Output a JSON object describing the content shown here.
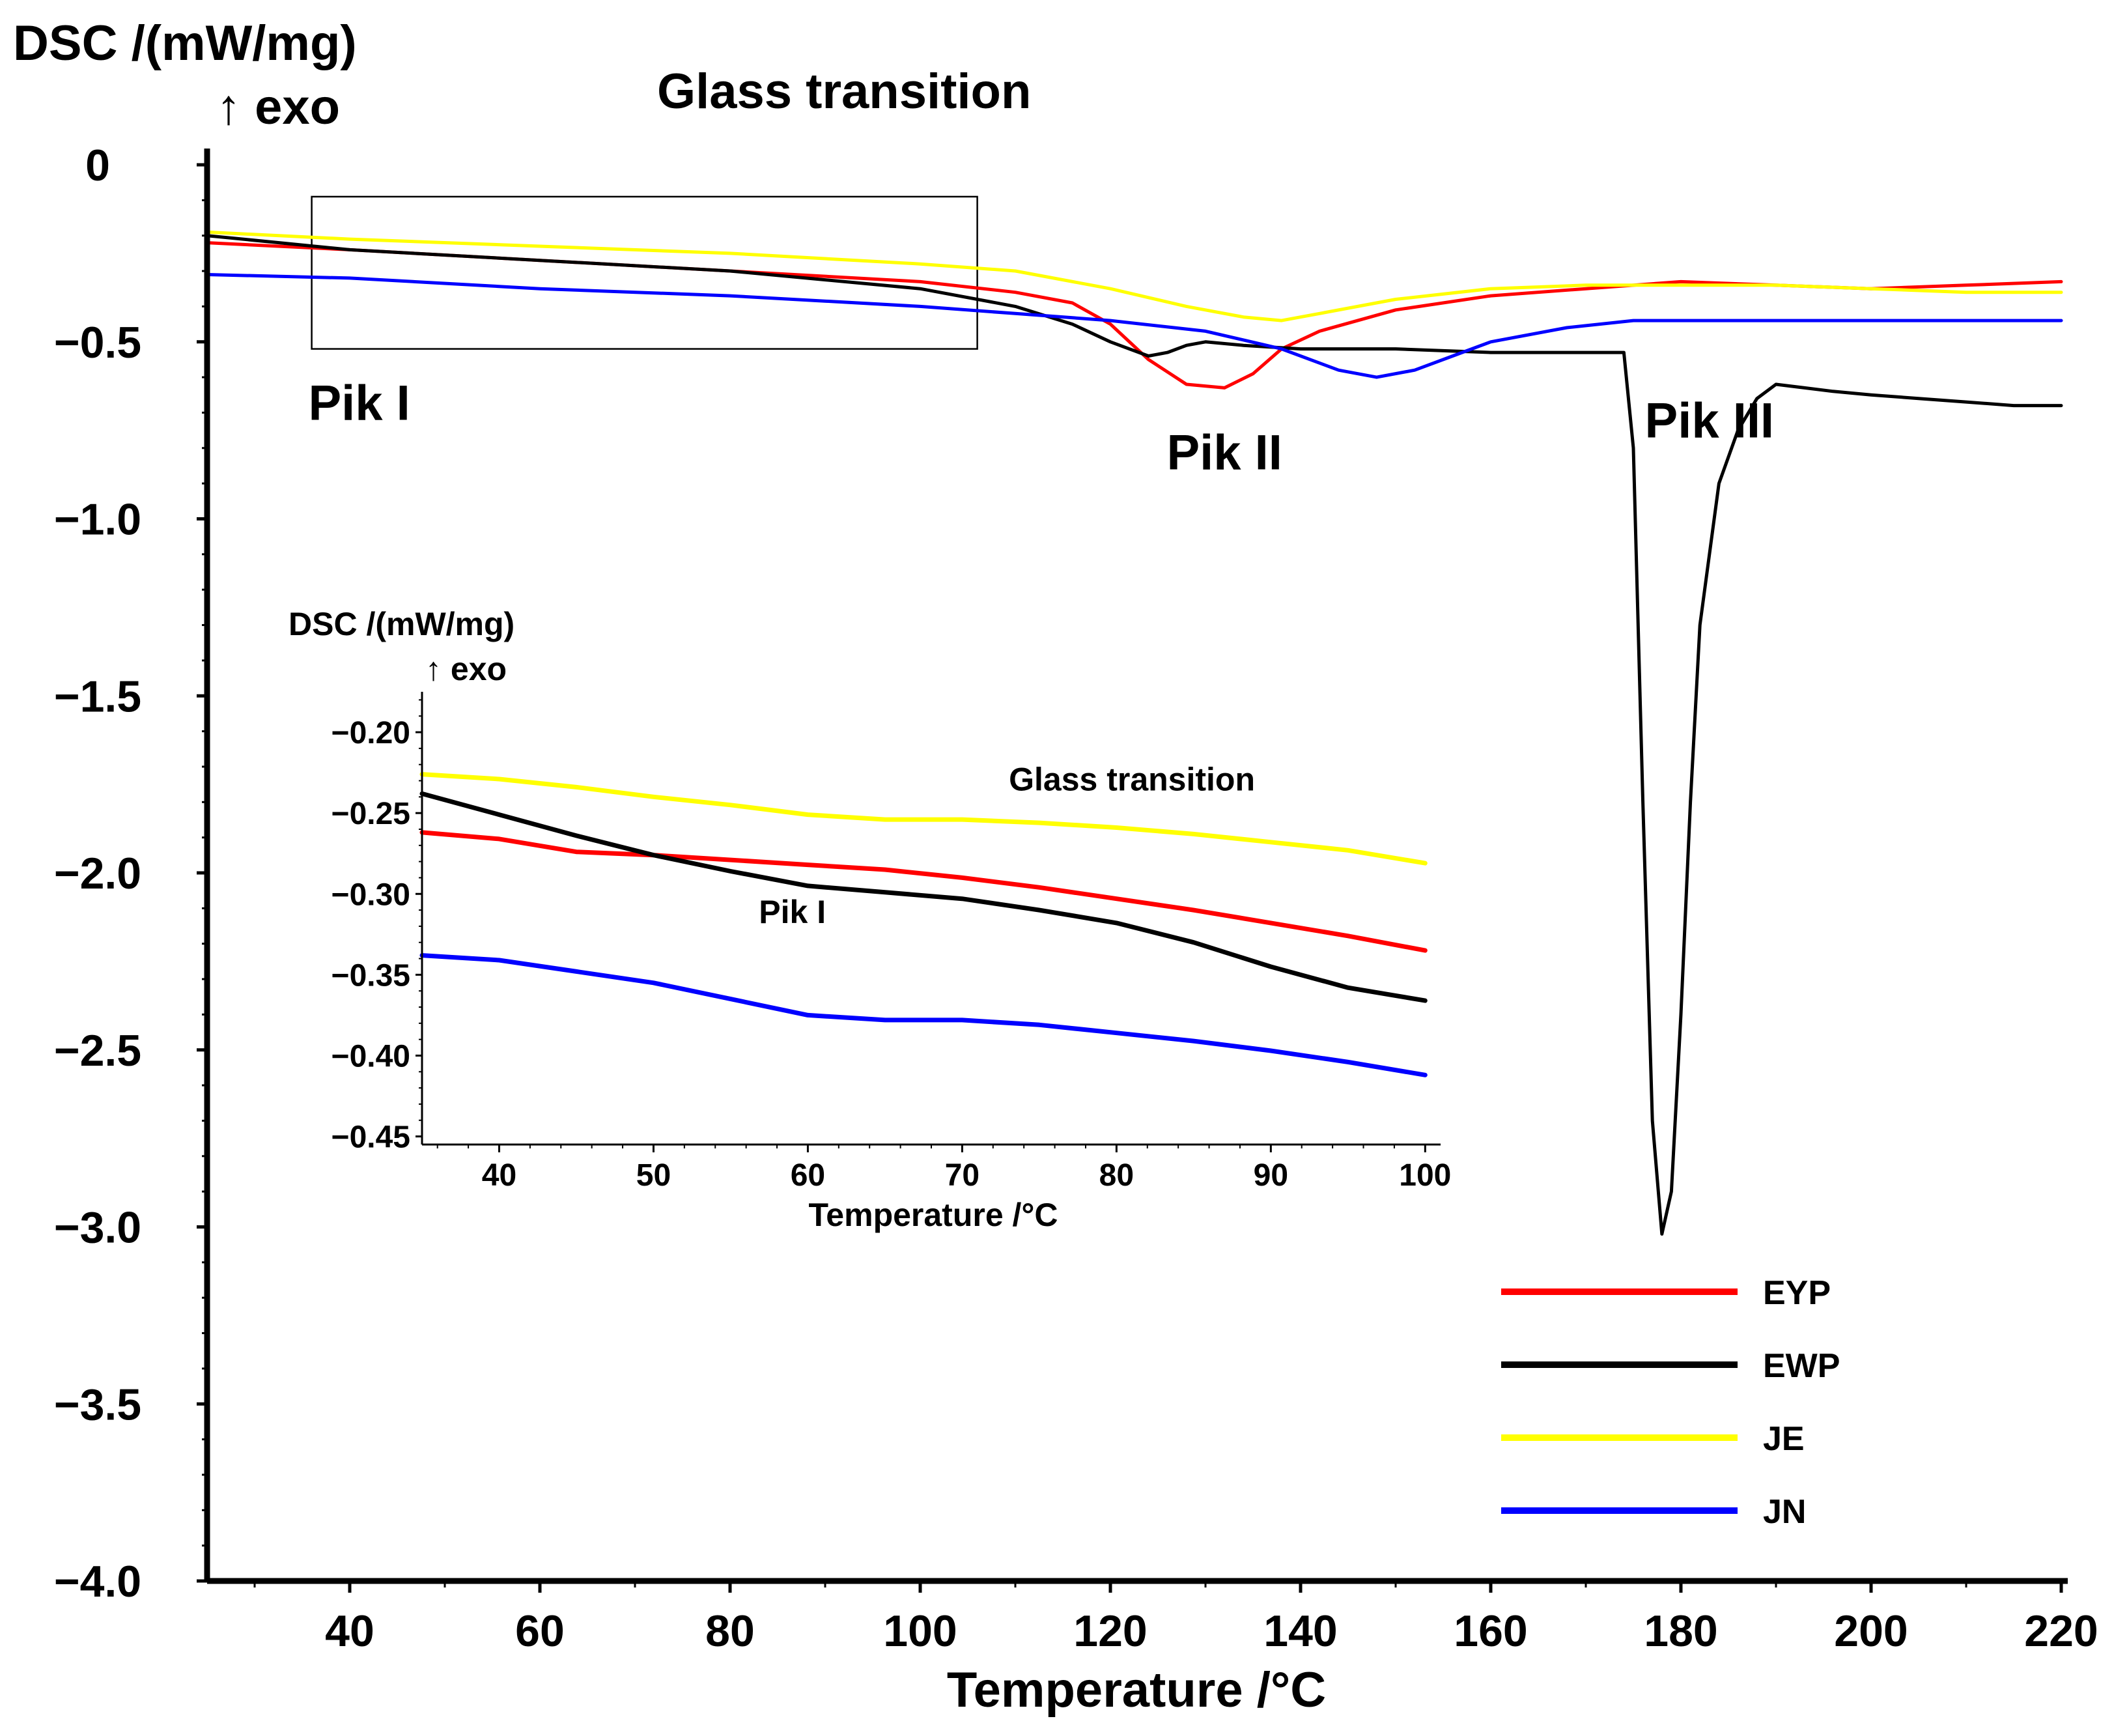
{
  "chart_data": [
    {
      "id": "main",
      "type": "line",
      "title": "",
      "ylabel_line1": "DSC /(mW/mg)",
      "ylabel_line2": "↑ exo",
      "xlabel": "Temperature /°C",
      "xlim": [
        25,
        220
      ],
      "ylim": [
        -4.0,
        0.0
      ],
      "xticks": [
        40,
        60,
        80,
        100,
        120,
        140,
        160,
        180,
        200,
        220
      ],
      "xtick_labels": [
        "40",
        "60",
        "80",
        "100",
        "120",
        "140",
        "160",
        "180",
        "200",
        "220"
      ],
      "yticks": [
        0,
        -0.5,
        -1.0,
        -1.5,
        -2.0,
        -2.5,
        -3.0,
        -3.5,
        -4.0
      ],
      "ytick_labels": [
        "0",
        "−0.5",
        "−1.0",
        "−1.5",
        "−2.0",
        "−2.5",
        "−3.0",
        "−3.5",
        "−4.0"
      ],
      "annotations": [
        {
          "text": "Glass transition",
          "x": 92,
          "y": 0.16
        },
        {
          "text": "Pik I",
          "x": 41,
          "y": -0.72
        },
        {
          "text": "Pik II",
          "x": 132,
          "y": -0.86
        },
        {
          "text": "Pik III",
          "x": 183,
          "y": -0.77
        }
      ],
      "highlight_box": {
        "x": [
          36,
          106
        ],
        "y": [
          -0.09,
          -0.52
        ]
      },
      "series": [
        {
          "name": "EYP",
          "color": "#ff0000",
          "x": [
            25,
            40,
            60,
            80,
            100,
            110,
            116,
            120,
            124,
            128,
            132,
            135,
            138,
            142,
            150,
            160,
            170,
            180,
            190,
            200,
            210,
            220
          ],
          "y": [
            -0.22,
            -0.24,
            -0.27,
            -0.3,
            -0.33,
            -0.36,
            -0.39,
            -0.45,
            -0.55,
            -0.62,
            -0.63,
            -0.59,
            -0.52,
            -0.47,
            -0.41,
            -0.37,
            -0.35,
            -0.33,
            -0.34,
            -0.35,
            -0.34,
            -0.33
          ]
        },
        {
          "name": "EWP",
          "color": "#000000",
          "x": [
            25,
            40,
            60,
            80,
            100,
            110,
            116,
            120,
            124,
            126,
            128,
            130,
            134,
            140,
            150,
            160,
            170,
            174,
            175,
            176,
            177,
            178,
            179,
            180,
            181,
            182,
            184,
            186,
            188,
            190,
            193,
            196,
            200,
            205,
            210,
            215,
            220
          ],
          "y": [
            -0.2,
            -0.24,
            -0.27,
            -0.3,
            -0.35,
            -0.4,
            -0.45,
            -0.5,
            -0.54,
            -0.53,
            -0.51,
            -0.5,
            -0.51,
            -0.52,
            -0.52,
            -0.53,
            -0.53,
            -0.53,
            -0.8,
            -1.8,
            -2.7,
            -3.02,
            -2.9,
            -2.4,
            -1.8,
            -1.3,
            -0.9,
            -0.75,
            -0.66,
            -0.62,
            -0.63,
            -0.64,
            -0.65,
            -0.66,
            -0.67,
            -0.68,
            -0.68
          ]
        },
        {
          "name": "JE",
          "color": "#ffff00",
          "x": [
            25,
            40,
            60,
            80,
            100,
            110,
            120,
            128,
            134,
            138,
            142,
            150,
            160,
            170,
            180,
            190,
            200,
            210,
            220
          ],
          "y": [
            -0.19,
            -0.21,
            -0.23,
            -0.25,
            -0.28,
            -0.3,
            -0.35,
            -0.4,
            -0.43,
            -0.44,
            -0.42,
            -0.38,
            -0.35,
            -0.34,
            -0.34,
            -0.34,
            -0.35,
            -0.36,
            -0.36
          ]
        },
        {
          "name": "JN",
          "color": "#0000ff",
          "x": [
            25,
            40,
            60,
            80,
            100,
            110,
            120,
            130,
            138,
            144,
            148,
            152,
            156,
            160,
            168,
            175,
            180,
            190,
            200,
            210,
            220
          ],
          "y": [
            -0.31,
            -0.32,
            -0.35,
            -0.37,
            -0.4,
            -0.42,
            -0.44,
            -0.47,
            -0.52,
            -0.58,
            -0.6,
            -0.58,
            -0.54,
            -0.5,
            -0.46,
            -0.44,
            -0.44,
            -0.44,
            -0.44,
            -0.44,
            -0.44
          ]
        }
      ],
      "legend": [
        {
          "label": "EYP",
          "color": "#ff0000"
        },
        {
          "label": "EWP",
          "color": "#000000"
        },
        {
          "label": "JE",
          "color": "#ffff00"
        },
        {
          "label": "JN",
          "color": "#0000ff"
        }
      ],
      "legend_position": "lower-right",
      "grid": false
    },
    {
      "id": "inset",
      "type": "line",
      "ylabel_line1": "DSC /(mW/mg)",
      "ylabel_line2": "↑ exo",
      "xlabel": "Temperature /°C",
      "xlim": [
        35,
        101
      ],
      "ylim": [
        -0.455,
        -0.175
      ],
      "xticks": [
        40,
        50,
        60,
        70,
        80,
        90,
        100
      ],
      "xtick_labels": [
        "40",
        "50",
        "60",
        "70",
        "80",
        "90",
        "100"
      ],
      "yticks": [
        -0.2,
        -0.25,
        -0.3,
        -0.35,
        -0.4,
        -0.45
      ],
      "ytick_labels": [
        "−0.20",
        "−0.25",
        "−0.30",
        "−0.35",
        "−0.40",
        "−0.45"
      ],
      "annotations": [
        {
          "text": "Glass transition",
          "x": 81,
          "y": -0.236
        },
        {
          "text": "Pik I",
          "x": 59,
          "y": -0.318
        }
      ],
      "series": [
        {
          "name": "EYP",
          "color": "#ff0000",
          "x": [
            35,
            40,
            45,
            50,
            55,
            60,
            65,
            70,
            75,
            80,
            85,
            90,
            95,
            100
          ],
          "y": [
            -0.262,
            -0.266,
            -0.274,
            -0.276,
            -0.279,
            -0.282,
            -0.285,
            -0.29,
            -0.296,
            -0.303,
            -0.31,
            -0.318,
            -0.326,
            -0.335
          ]
        },
        {
          "name": "EWP",
          "color": "#000000",
          "x": [
            35,
            40,
            45,
            50,
            55,
            60,
            65,
            70,
            75,
            80,
            85,
            90,
            95,
            100
          ],
          "y": [
            -0.238,
            -0.251,
            -0.264,
            -0.276,
            -0.286,
            -0.295,
            -0.299,
            -0.303,
            -0.31,
            -0.318,
            -0.33,
            -0.345,
            -0.358,
            -0.366
          ]
        },
        {
          "name": "JE",
          "color": "#ffff00",
          "x": [
            35,
            40,
            45,
            50,
            55,
            60,
            65,
            70,
            75,
            80,
            85,
            90,
            95,
            100
          ],
          "y": [
            -0.226,
            -0.229,
            -0.234,
            -0.24,
            -0.245,
            -0.251,
            -0.254,
            -0.254,
            -0.256,
            -0.259,
            -0.263,
            -0.268,
            -0.273,
            -0.281
          ]
        },
        {
          "name": "JN",
          "color": "#0000ff",
          "x": [
            35,
            40,
            45,
            50,
            55,
            60,
            65,
            70,
            75,
            80,
            85,
            90,
            95,
            100
          ],
          "y": [
            -0.338,
            -0.341,
            -0.348,
            -0.355,
            -0.365,
            -0.375,
            -0.378,
            -0.378,
            -0.381,
            -0.386,
            -0.391,
            -0.397,
            -0.404,
            -0.412
          ]
        }
      ],
      "grid": false
    }
  ]
}
